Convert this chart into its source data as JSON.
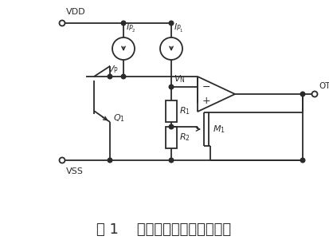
{
  "title": "图 1    传统过温保护电路原理图",
  "bg_color": "#ffffff",
  "line_color": "#2b2b2b",
  "title_fontsize": 13
}
